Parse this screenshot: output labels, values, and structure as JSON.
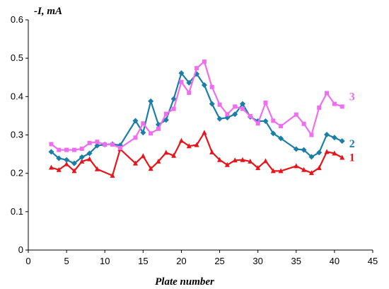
{
  "chart_data": {
    "type": "line",
    "xlabel": "Plate number",
    "ylabel": "-I, mA",
    "xlim": [
      0,
      45
    ],
    "ylim": [
      0,
      0.6
    ],
    "x_ticks": [
      "0",
      "5",
      "10",
      "15",
      "20",
      "25",
      "30",
      "35",
      "40",
      "45"
    ],
    "y_ticks": [
      "0",
      "0.1",
      "0.2",
      "0.3",
      "0.4",
      "0.5",
      "0.6"
    ],
    "grid": false,
    "legend": "labels at right end of each series",
    "series": [
      {
        "name": "1",
        "color": "#e8141b",
        "marker": "triangle",
        "x": [
          3,
          4,
          5,
          6,
          7,
          8,
          9,
          11,
          12,
          14,
          15,
          16,
          17,
          18,
          19,
          20,
          21,
          22,
          23,
          24,
          25,
          26,
          27,
          28,
          29,
          30,
          31,
          32,
          33,
          35,
          36,
          37,
          38,
          39,
          40,
          41
        ],
        "y": [
          0.215,
          0.209,
          0.224,
          0.206,
          0.231,
          0.237,
          0.211,
          0.194,
          0.263,
          0.226,
          0.245,
          0.212,
          0.231,
          0.254,
          0.246,
          0.285,
          0.271,
          0.274,
          0.306,
          0.255,
          0.235,
          0.222,
          0.234,
          0.235,
          0.231,
          0.214,
          0.232,
          0.206,
          0.206,
          0.219,
          0.209,
          0.201,
          0.214,
          0.256,
          0.252,
          0.241
        ]
      },
      {
        "name": "2",
        "color": "#1b7ea8",
        "marker": "diamond",
        "x": [
          3,
          4,
          5,
          6,
          7,
          8,
          9,
          10,
          11,
          12,
          14,
          15,
          16,
          17,
          18,
          19,
          20,
          21,
          22,
          23,
          24,
          25,
          26,
          27,
          28,
          29,
          30,
          31,
          32,
          33,
          35,
          36,
          37,
          38,
          39,
          40,
          41
        ],
        "y": [
          0.256,
          0.239,
          0.235,
          0.226,
          0.242,
          0.252,
          0.272,
          0.275,
          0.276,
          0.273,
          0.337,
          0.306,
          0.388,
          0.327,
          0.339,
          0.394,
          0.461,
          0.436,
          0.459,
          0.43,
          0.381,
          0.342,
          0.345,
          0.354,
          0.381,
          0.347,
          0.336,
          0.336,
          0.304,
          0.291,
          0.263,
          0.261,
          0.243,
          0.254,
          0.301,
          0.293,
          0.284
        ]
      },
      {
        "name": "3",
        "color": "#f06cf0",
        "marker": "square",
        "x": [
          3,
          4,
          5,
          6,
          7,
          8,
          9,
          10,
          11,
          12,
          14,
          15,
          16,
          17,
          18,
          19,
          20,
          21,
          22,
          23,
          24,
          25,
          26,
          27,
          28,
          29,
          30,
          31,
          32,
          33,
          35,
          36,
          37,
          38,
          39,
          40,
          41
        ],
        "y": [
          0.276,
          0.261,
          0.261,
          0.261,
          0.264,
          0.279,
          0.282,
          0.275,
          0.275,
          0.266,
          0.293,
          0.33,
          0.304,
          0.316,
          0.355,
          0.368,
          0.438,
          0.41,
          0.474,
          0.491,
          0.425,
          0.379,
          0.354,
          0.374,
          0.368,
          0.349,
          0.33,
          0.384,
          0.337,
          0.323,
          0.353,
          0.329,
          0.3,
          0.371,
          0.409,
          0.381,
          0.374
        ]
      }
    ]
  }
}
